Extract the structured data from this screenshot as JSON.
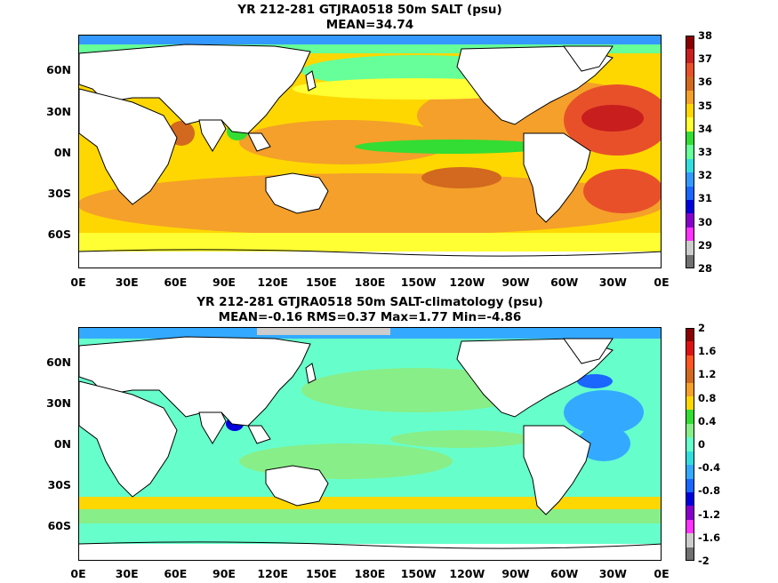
{
  "panel1": {
    "title_line1": "YR 212-281 GTJRA0518 50m SALT (psu)",
    "title_line2": "MEAN=34.74",
    "colorbar": {
      "ticks": [
        "38",
        "37",
        "36",
        "35",
        "34",
        "33",
        "32",
        "31",
        "30",
        "29",
        "28"
      ],
      "colors": [
        "#8b0000",
        "#c81e1e",
        "#e8502a",
        "#d2691e",
        "#f4a02a",
        "#ffd700",
        "#ffff33",
        "#33dd33",
        "#66ff99",
        "#33dddd",
        "#3399ff",
        "#1a66ff",
        "#0000dd",
        "#8800cc",
        "#ff33ff",
        "#cccccc",
        "#707070"
      ]
    }
  },
  "panel2": {
    "title_line1": "YR 212-281 GTJRA0518 50m SALT-climatology (psu)",
    "title_line2": "MEAN=-0.16   RMS=0.37   Max=1.77   Min=-4.86",
    "colorbar": {
      "ticks": [
        "2",
        "1.6",
        "1.2",
        "0.8",
        "0.4",
        "0",
        "-0.4",
        "-0.8",
        "-1.2",
        "-1.6",
        "-2"
      ],
      "colors": [
        "#8b0000",
        "#dd1111",
        "#ff5522",
        "#d2691e",
        "#f4a02a",
        "#ffd700",
        "#33dd33",
        "#88ee88",
        "#66ffcc",
        "#33dddd",
        "#33aaff",
        "#1a66ff",
        "#0000dd",
        "#8800cc",
        "#ff33ff",
        "#cccccc",
        "#707070"
      ]
    }
  },
  "axes": {
    "x_ticks": [
      "0E",
      "30E",
      "60E",
      "90E",
      "120E",
      "150E",
      "180E",
      "150W",
      "120W",
      "90W",
      "60W",
      "30W",
      "0E"
    ],
    "y_ticks": [
      "60N",
      "30N",
      "0N",
      "30S",
      "60S"
    ]
  }
}
